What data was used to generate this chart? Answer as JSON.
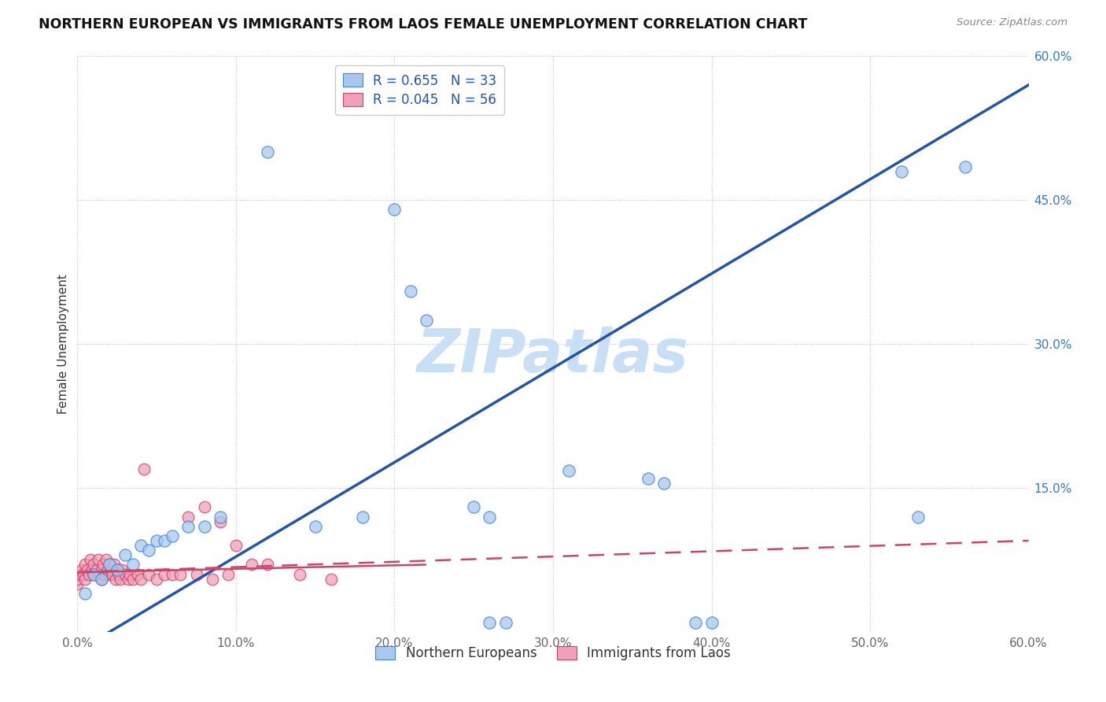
{
  "title": "NORTHERN EUROPEAN VS IMMIGRANTS FROM LAOS FEMALE UNEMPLOYMENT CORRELATION CHART",
  "source": "Source: ZipAtlas.com",
  "ylabel": "Female Unemployment",
  "xlim": [
    0,
    0.6
  ],
  "ylim": [
    0,
    0.6
  ],
  "xtick_vals": [
    0.0,
    0.1,
    0.2,
    0.3,
    0.4,
    0.5,
    0.6
  ],
  "ytick_vals": [
    0.0,
    0.15,
    0.3,
    0.45,
    0.6
  ],
  "xticklabels": [
    "0.0%",
    "10.0%",
    "20.0%",
    "30.0%",
    "40.0%",
    "50.0%",
    "60.0%"
  ],
  "yticklabels_right": [
    "",
    "15.0%",
    "30.0%",
    "45.0%",
    "60.0%"
  ],
  "blue_color": "#a8c8f0",
  "pink_color": "#f0a0b8",
  "blue_edge_color": "#4488cc",
  "pink_edge_color": "#cc4466",
  "blue_line_color": "#2255aa",
  "pink_line_color": "#cc4466",
  "watermark": "ZIPatlas",
  "watermark_color": "#c8dff5",
  "legend1_R": "0.655",
  "legend1_N": "33",
  "legend2_R": "0.045",
  "legend2_N": "56",
  "legend_label_color": "#2255aa",
  "blue_points": [
    [
      0.005,
      0.04
    ],
    [
      0.01,
      0.06
    ],
    [
      0.015,
      0.055
    ],
    [
      0.02,
      0.07
    ],
    [
      0.025,
      0.065
    ],
    [
      0.03,
      0.08
    ],
    [
      0.035,
      0.07
    ],
    [
      0.04,
      0.09
    ],
    [
      0.045,
      0.085
    ],
    [
      0.05,
      0.095
    ],
    [
      0.055,
      0.095
    ],
    [
      0.06,
      0.1
    ],
    [
      0.07,
      0.11
    ],
    [
      0.08,
      0.11
    ],
    [
      0.09,
      0.12
    ],
    [
      0.12,
      0.5
    ],
    [
      0.15,
      0.11
    ],
    [
      0.18,
      0.12
    ],
    [
      0.2,
      0.44
    ],
    [
      0.21,
      0.355
    ],
    [
      0.22,
      0.325
    ],
    [
      0.25,
      0.13
    ],
    [
      0.26,
      0.12
    ],
    [
      0.26,
      0.01
    ],
    [
      0.27,
      0.01
    ],
    [
      0.31,
      0.168
    ],
    [
      0.36,
      0.16
    ],
    [
      0.37,
      0.155
    ],
    [
      0.39,
      0.01
    ],
    [
      0.4,
      0.01
    ],
    [
      0.52,
      0.48
    ],
    [
      0.53,
      0.12
    ],
    [
      0.56,
      0.485
    ]
  ],
  "pink_points": [
    [
      0.0,
      0.05
    ],
    [
      0.0,
      0.055
    ],
    [
      0.002,
      0.06
    ],
    [
      0.003,
      0.065
    ],
    [
      0.004,
      0.06
    ],
    [
      0.005,
      0.07
    ],
    [
      0.005,
      0.055
    ],
    [
      0.006,
      0.065
    ],
    [
      0.007,
      0.06
    ],
    [
      0.008,
      0.075
    ],
    [
      0.009,
      0.065
    ],
    [
      0.01,
      0.06
    ],
    [
      0.01,
      0.07
    ],
    [
      0.011,
      0.06
    ],
    [
      0.012,
      0.065
    ],
    [
      0.013,
      0.075
    ],
    [
      0.014,
      0.06
    ],
    [
      0.015,
      0.065
    ],
    [
      0.015,
      0.055
    ],
    [
      0.016,
      0.07
    ],
    [
      0.017,
      0.06
    ],
    [
      0.018,
      0.075
    ],
    [
      0.019,
      0.065
    ],
    [
      0.02,
      0.06
    ],
    [
      0.02,
      0.07
    ],
    [
      0.021,
      0.065
    ],
    [
      0.022,
      0.06
    ],
    [
      0.023,
      0.07
    ],
    [
      0.024,
      0.055
    ],
    [
      0.025,
      0.065
    ],
    [
      0.026,
      0.06
    ],
    [
      0.027,
      0.055
    ],
    [
      0.028,
      0.065
    ],
    [
      0.03,
      0.06
    ],
    [
      0.032,
      0.055
    ],
    [
      0.033,
      0.06
    ],
    [
      0.035,
      0.055
    ],
    [
      0.038,
      0.06
    ],
    [
      0.04,
      0.055
    ],
    [
      0.042,
      0.17
    ],
    [
      0.045,
      0.06
    ],
    [
      0.05,
      0.055
    ],
    [
      0.055,
      0.06
    ],
    [
      0.06,
      0.06
    ],
    [
      0.065,
      0.06
    ],
    [
      0.07,
      0.12
    ],
    [
      0.075,
      0.06
    ],
    [
      0.08,
      0.13
    ],
    [
      0.085,
      0.055
    ],
    [
      0.09,
      0.115
    ],
    [
      0.095,
      0.06
    ],
    [
      0.1,
      0.09
    ],
    [
      0.11,
      0.07
    ],
    [
      0.12,
      0.07
    ],
    [
      0.14,
      0.06
    ],
    [
      0.16,
      0.055
    ]
  ],
  "blue_line_x": [
    0.0,
    0.6
  ],
  "blue_line_y": [
    -0.02,
    0.57
  ],
  "pink_line_x": [
    0.0,
    0.6
  ],
  "pink_line_y": [
    0.062,
    0.095
  ]
}
